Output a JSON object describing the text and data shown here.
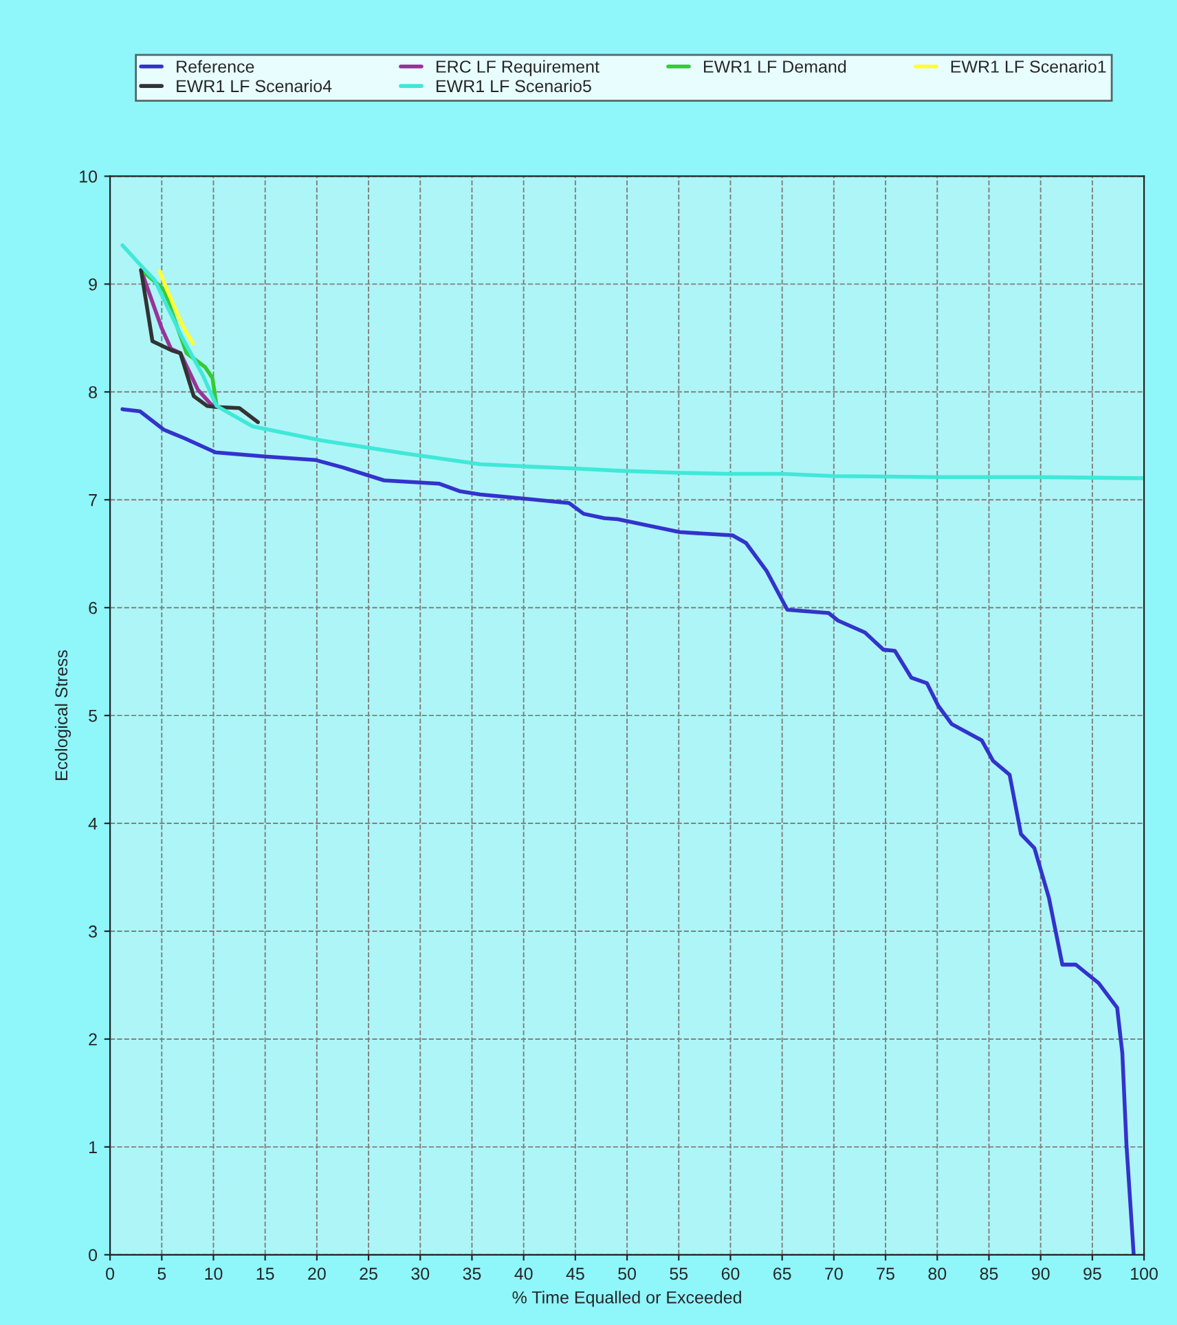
{
  "chart_data": {
    "type": "line",
    "xlabel": "% Time Equalled or Exceeded",
    "ylabel": "Ecological Stress",
    "xlim": [
      0,
      100
    ],
    "ylim": [
      0,
      10
    ],
    "xticks": [
      0,
      5,
      10,
      15,
      20,
      25,
      30,
      35,
      40,
      45,
      50,
      55,
      60,
      65,
      70,
      75,
      80,
      85,
      90,
      95,
      100
    ],
    "yticks": [
      0,
      1,
      2,
      3,
      4,
      5,
      6,
      7,
      8,
      9,
      10
    ],
    "grid": true,
    "legend": "top",
    "line_style": "solid",
    "marker": "none",
    "series": [
      {
        "name": "Reference",
        "color": "#3333cc",
        "x": [
          1.2,
          2.9,
          5.2,
          7.2,
          10.2,
          15.2,
          19.8,
          22.5,
          26.5,
          31.8,
          33.8,
          35.8,
          44.4,
          45.8,
          47.8,
          49.1,
          55.1,
          60.2,
          61.5,
          63.5,
          65.5,
          69.5,
          70.4,
          73.0,
          74.8,
          75.9,
          77.5,
          79.0,
          80.1,
          81.4,
          84.3,
          85.4,
          87.0,
          88.1,
          89.4,
          90.8,
          92.1,
          93.4,
          95.6,
          97.4,
          97.9,
          98.3,
          99.0
        ],
        "values": [
          7.84,
          7.82,
          7.65,
          7.57,
          7.44,
          7.4,
          7.37,
          7.3,
          7.18,
          7.15,
          7.08,
          7.05,
          6.97,
          6.87,
          6.83,
          6.82,
          6.7,
          6.67,
          6.6,
          6.34,
          5.98,
          5.95,
          5.88,
          5.77,
          5.61,
          5.6,
          5.35,
          5.3,
          5.09,
          4.92,
          4.77,
          4.58,
          4.45,
          3.9,
          3.77,
          3.31,
          2.69,
          2.69,
          2.52,
          2.29,
          1.87,
          1.02,
          0.0
        ]
      },
      {
        "name": "ERC LF Requirement",
        "color": "#993399",
        "x": [
          3.0,
          5.0,
          5.9,
          6.8,
          8.5,
          9.9
        ],
        "values": [
          9.13,
          8.59,
          8.4,
          8.36,
          8.02,
          7.87
        ]
      },
      {
        "name": "EWR1 LF Demand",
        "color": "#33cc33",
        "x": [
          3.4,
          5.2,
          7.4,
          9.2,
          9.9,
          10.3
        ],
        "values": [
          9.1,
          8.95,
          8.36,
          8.23,
          8.13,
          7.87
        ]
      },
      {
        "name": "EWR1 LF Scenario1",
        "color": "#ffff33",
        "x": [
          4.8,
          5.5,
          7.0,
          8.0
        ],
        "values": [
          9.12,
          8.95,
          8.62,
          8.45
        ]
      },
      {
        "name": "EWR1 LF Scenario4",
        "color": "#333333",
        "x": [
          3.0,
          4.1,
          6.1,
          6.8,
          8.1,
          9.4,
          10.3,
          12.5,
          14.3
        ],
        "values": [
          9.13,
          8.47,
          8.38,
          8.36,
          7.96,
          7.87,
          7.86,
          7.85,
          7.72
        ]
      },
      {
        "name": "EWR1 LF Scenario5",
        "color": "#40e8d8",
        "x": [
          1.2,
          3.0,
          4.3,
          7,
          9,
          10.3,
          13.8,
          20.5,
          28.5,
          35.8,
          40,
          45,
          49.1,
          55,
          60,
          65,
          70,
          80,
          90,
          100
        ],
        "values": [
          9.36,
          9.17,
          9.04,
          8.5,
          8.15,
          7.87,
          7.68,
          7.55,
          7.43,
          7.33,
          7.31,
          7.29,
          7.27,
          7.25,
          7.24,
          7.24,
          7.22,
          7.21,
          7.21,
          7.2
        ]
      }
    ]
  }
}
